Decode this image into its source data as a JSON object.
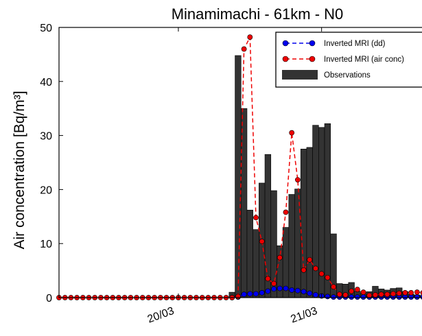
{
  "chart_data": {
    "type": "bar",
    "title": "Minamimachi  -  61km - N0",
    "ylabel": "Air concentration [Bq/m³]",
    "xlabel": "",
    "ylim": [
      0,
      50
    ],
    "yticks": [
      0,
      10,
      20,
      30,
      40,
      50
    ],
    "x_unit": "hours since first sample (hourly)",
    "xticks": [
      {
        "label": "20/03",
        "x": 20
      },
      {
        "label": "21/03",
        "x": 44
      }
    ],
    "legend_position": "top-right",
    "series": [
      {
        "name": "Observations",
        "kind": "bar",
        "color": "#333333",
        "x": [
          29,
          30,
          31,
          32,
          33,
          34,
          35,
          36,
          37,
          38,
          39,
          40,
          41,
          42,
          43,
          44,
          45,
          46,
          47,
          48,
          49,
          50,
          51,
          52,
          53,
          54,
          55,
          56,
          57,
          58,
          59,
          60,
          61,
          62,
          63
        ],
        "values": [
          1.0,
          44.8,
          35.0,
          16.2,
          12.6,
          21.2,
          26.5,
          19.8,
          9.6,
          13.0,
          19.1,
          20.1,
          27.5,
          27.8,
          31.9,
          31.5,
          32.2,
          11.8,
          2.6,
          2.5,
          2.8,
          1.2,
          0.8,
          1.1,
          2.1,
          1.6,
          1.4,
          1.7,
          1.8,
          1.1,
          0.6,
          0.5,
          0.4,
          0.2,
          0.1
        ]
      },
      {
        "name": "Inverted MRI (dd)",
        "kind": "line-marker",
        "color": "#0000ee",
        "x": [
          29,
          30,
          31,
          32,
          33,
          34,
          35,
          36,
          37,
          38,
          39,
          40,
          41,
          42,
          43,
          44,
          45,
          46,
          47,
          48,
          49,
          50,
          51,
          52,
          53,
          54,
          55,
          56,
          57,
          58,
          59,
          60,
          61,
          62,
          63,
          64,
          65,
          66,
          67,
          68,
          69,
          70,
          71,
          72
        ],
        "values": [
          0,
          0.1,
          0.6,
          0.7,
          0.7,
          0.9,
          1.2,
          1.6,
          1.7,
          1.7,
          1.4,
          1.3,
          1.1,
          0.8,
          0.5,
          0.3,
          0.2,
          0.1,
          0.1,
          0.1,
          0.1,
          0.1,
          0.1,
          0.1,
          0.1,
          0.1,
          0.1,
          0.1,
          0.1,
          0.1,
          0.1,
          0.1,
          0.1,
          0.1,
          0.1,
          0.1,
          0.1,
          0.1,
          0.1,
          0.1,
          0.1,
          0.1,
          0.1,
          0.1
        ]
      },
      {
        "name": "Inverted MRI (air conc)",
        "kind": "line-marker",
        "color": "#ee0000",
        "x": [
          0,
          1,
          2,
          3,
          4,
          5,
          6,
          7,
          8,
          9,
          10,
          11,
          12,
          13,
          14,
          15,
          16,
          17,
          18,
          19,
          20,
          21,
          22,
          23,
          24,
          25,
          26,
          27,
          28,
          29,
          30,
          31,
          32,
          33,
          34,
          35,
          36,
          37,
          38,
          39,
          40,
          41,
          42,
          43,
          44,
          45,
          46,
          47,
          48,
          49,
          50,
          51,
          52,
          53,
          54,
          55,
          56,
          57,
          58,
          59,
          60,
          61,
          62,
          63,
          64,
          65,
          66,
          67,
          68,
          69,
          70,
          71,
          72
        ],
        "values": [
          0,
          0,
          0,
          0,
          0,
          0,
          0,
          0,
          0,
          0,
          0,
          0,
          0,
          0,
          0,
          0,
          0,
          0,
          0,
          0,
          0,
          0,
          0,
          0,
          0,
          0,
          0,
          0,
          0,
          0,
          0.2,
          46.0,
          48.2,
          14.8,
          10.4,
          3.5,
          2.6,
          7.4,
          15.8,
          30.5,
          21.8,
          5.1,
          7.0,
          5.4,
          4.4,
          3.7,
          2.0,
          0.6,
          0.5,
          1.2,
          1.5,
          1.0,
          0.4,
          0.5,
          0.6,
          0.6,
          0.7,
          0.8,
          0.9,
          0.9,
          1.0,
          0.9,
          1.0,
          0.8,
          0.9,
          0.8,
          0.8,
          0.7,
          0.8,
          0.6,
          0.6,
          0.5,
          0.6
        ]
      }
    ]
  }
}
